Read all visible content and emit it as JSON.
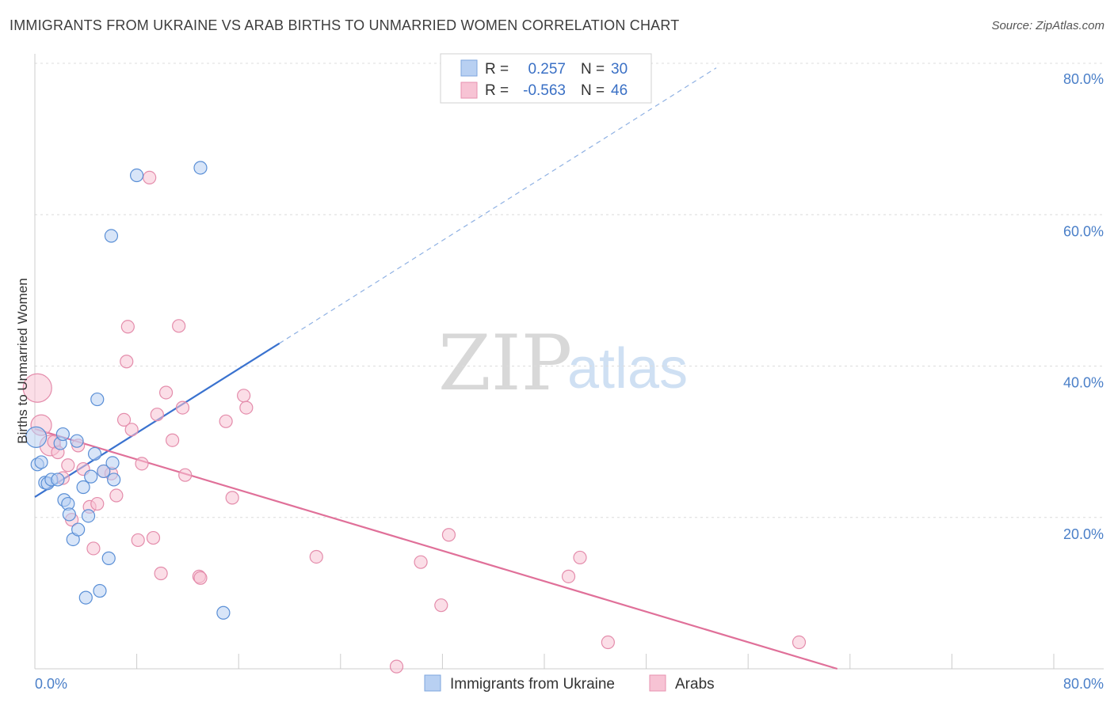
{
  "title": "IMMIGRANTS FROM UKRAINE VS ARAB BIRTHS TO UNMARRIED WOMEN CORRELATION CHART",
  "source": "Source: ZipAtlas.com",
  "colors": {
    "blue": "#3a72cf",
    "pink": "#e07099",
    "blue_fill": "#b8d0f2",
    "pink_fill": "#f7c3d4",
    "tick": "#4a7fc8"
  },
  "watermark": {
    "zip": "ZIP",
    "atlas": "atlas"
  },
  "legend_box": {
    "r_label": "R =",
    "n_label": "N =",
    "rows": [
      {
        "series": "blue",
        "r": "0.257",
        "n": "30"
      },
      {
        "series": "pink",
        "r": "-0.563",
        "n": "46"
      }
    ]
  },
  "chart_data": {
    "type": "scatter",
    "title": "IMMIGRANTS FROM UKRAINE VS ARAB BIRTHS TO UNMARRIED WOMEN CORRELATION CHART",
    "xlabel": "",
    "ylabel": "Births to Unmarried Women",
    "xlim": [
      0,
      80
    ],
    "ylim": [
      0,
      80
    ],
    "x_tick_labels": [
      "0.0%",
      "80.0%"
    ],
    "y_tick_labels": [
      "20.0%",
      "40.0%",
      "60.0%",
      "80.0%"
    ],
    "y_ticks": [
      20,
      40,
      60,
      80
    ],
    "legend": [
      "Immigrants from Ukraine",
      "Arabs"
    ],
    "series": [
      {
        "name": "Immigrants from Ukraine",
        "color": "blue",
        "r": 0.257,
        "n": 30,
        "trend": {
          "x0": 0.0,
          "y0": 22.7,
          "x1": 19.2,
          "y1": 43.0,
          "dash_to_x": 53.5,
          "dash_to_y": 79.4
        },
        "points": [
          [
            0.1,
            30.6,
            2
          ],
          [
            0.2,
            27.0,
            1
          ],
          [
            0.5,
            27.3,
            1
          ],
          [
            0.8,
            24.6,
            1
          ],
          [
            1.0,
            24.5,
            1
          ],
          [
            1.3,
            25.0,
            1
          ],
          [
            1.8,
            25.0,
            1
          ],
          [
            2.0,
            29.8,
            1
          ],
          [
            2.2,
            31.0,
            1
          ],
          [
            2.3,
            22.3,
            1
          ],
          [
            2.6,
            21.8,
            1
          ],
          [
            2.7,
            20.4,
            1
          ],
          [
            3.0,
            17.1,
            1
          ],
          [
            3.4,
            18.4,
            1
          ],
          [
            3.3,
            30.1,
            1
          ],
          [
            3.8,
            24.0,
            1
          ],
          [
            4.0,
            9.4,
            1
          ],
          [
            4.2,
            20.2,
            1
          ],
          [
            4.4,
            25.4,
            1
          ],
          [
            4.7,
            28.4,
            1
          ],
          [
            4.9,
            35.6,
            1
          ],
          [
            5.1,
            10.3,
            1
          ],
          [
            5.4,
            26.1,
            1
          ],
          [
            5.8,
            14.6,
            1
          ],
          [
            6.0,
            57.2,
            1
          ],
          [
            6.1,
            27.2,
            1
          ],
          [
            6.2,
            25.0,
            1
          ],
          [
            8.0,
            65.2,
            1
          ],
          [
            13.0,
            66.2,
            1
          ],
          [
            14.8,
            7.4,
            1
          ]
        ]
      },
      {
        "name": "Arabs",
        "color": "pink",
        "r": -0.563,
        "n": 46,
        "trend": {
          "x0": 0.0,
          "y0": 31.7,
          "x1": 63.0,
          "y1": 0.0
        },
        "points": [
          [
            0.2,
            37.1,
            3
          ],
          [
            0.5,
            32.2,
            2
          ],
          [
            1.2,
            29.5,
            2
          ],
          [
            1.5,
            30.0,
            1
          ],
          [
            1.8,
            28.6,
            1
          ],
          [
            2.2,
            25.2,
            1
          ],
          [
            2.6,
            26.9,
            1
          ],
          [
            2.9,
            19.7,
            1
          ],
          [
            3.4,
            29.5,
            1
          ],
          [
            3.8,
            26.4,
            1
          ],
          [
            4.3,
            21.4,
            1
          ],
          [
            4.6,
            15.9,
            1
          ],
          [
            4.9,
            21.8,
            1
          ],
          [
            5.4,
            26.1,
            1
          ],
          [
            6.0,
            25.8,
            1
          ],
          [
            6.4,
            22.9,
            1
          ],
          [
            7.0,
            32.9,
            1
          ],
          [
            7.2,
            40.6,
            1
          ],
          [
            7.3,
            45.2,
            1
          ],
          [
            7.6,
            31.6,
            1
          ],
          [
            8.1,
            17.0,
            1
          ],
          [
            8.4,
            27.1,
            1
          ],
          [
            9.0,
            64.9,
            1
          ],
          [
            9.3,
            17.3,
            1
          ],
          [
            9.6,
            33.6,
            1
          ],
          [
            9.9,
            12.6,
            1
          ],
          [
            10.3,
            36.5,
            1
          ],
          [
            10.8,
            30.2,
            1
          ],
          [
            11.3,
            45.3,
            1
          ],
          [
            11.6,
            34.5,
            1
          ],
          [
            11.8,
            25.6,
            1
          ],
          [
            12.9,
            12.2,
            1
          ],
          [
            13.0,
            12.0,
            1
          ],
          [
            15.0,
            32.7,
            1
          ],
          [
            15.5,
            22.6,
            1
          ],
          [
            16.4,
            36.1,
            1
          ],
          [
            16.6,
            34.5,
            1
          ],
          [
            22.1,
            14.8,
            1
          ],
          [
            28.4,
            0.3,
            1
          ],
          [
            30.3,
            14.1,
            1
          ],
          [
            31.9,
            8.4,
            1
          ],
          [
            32.5,
            17.7,
            1
          ],
          [
            41.9,
            12.2,
            1
          ],
          [
            42.8,
            14.7,
            1
          ],
          [
            45.0,
            3.5,
            1
          ],
          [
            60.0,
            3.5,
            1
          ]
        ]
      }
    ]
  }
}
